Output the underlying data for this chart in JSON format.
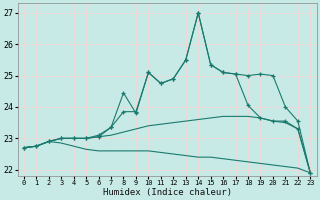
{
  "xlabel": "Humidex (Indice chaleur)",
  "xlim": [
    -0.5,
    23.5
  ],
  "ylim": [
    21.8,
    27.3
  ],
  "xticks": [
    0,
    1,
    2,
    3,
    4,
    5,
    6,
    7,
    8,
    9,
    10,
    11,
    12,
    13,
    14,
    15,
    16,
    17,
    18,
    19,
    20,
    21,
    22,
    23
  ],
  "yticks": [
    22,
    23,
    24,
    25,
    26,
    27
  ],
  "bg_color": "#c8eae6",
  "line_color": "#1a7a6e",
  "grid_color": "#f0d8d8",
  "lines": [
    {
      "x": [
        0,
        1,
        2,
        3,
        4,
        5,
        6,
        7,
        8,
        9,
        10,
        11,
        12,
        13,
        14,
        15,
        16,
        17,
        18,
        19,
        20,
        21,
        22,
        23
      ],
      "y": [
        22.7,
        22.75,
        22.9,
        22.85,
        22.75,
        22.65,
        22.6,
        22.6,
        22.6,
        22.6,
        22.6,
        22.55,
        22.5,
        22.45,
        22.4,
        22.4,
        22.35,
        22.3,
        22.25,
        22.2,
        22.15,
        22.1,
        22.05,
        21.9
      ],
      "marker": false
    },
    {
      "x": [
        0,
        1,
        2,
        3,
        4,
        5,
        6,
        7,
        8,
        9,
        10,
        11,
        12,
        13,
        14,
        15,
        16,
        17,
        18,
        19,
        20,
        21,
        22,
        23
      ],
      "y": [
        22.7,
        22.75,
        22.9,
        23.0,
        23.0,
        23.0,
        23.05,
        23.1,
        23.2,
        23.3,
        23.4,
        23.45,
        23.5,
        23.55,
        23.6,
        23.65,
        23.7,
        23.7,
        23.7,
        23.65,
        23.55,
        23.5,
        23.3,
        21.9
      ],
      "marker": false
    },
    {
      "x": [
        0,
        1,
        2,
        3,
        4,
        5,
        6,
        7,
        8,
        9,
        10,
        11,
        12,
        13,
        14,
        15,
        16,
        17,
        18,
        19,
        20,
        21,
        22,
        23
      ],
      "y": [
        22.7,
        22.75,
        22.9,
        23.0,
        23.0,
        23.0,
        23.05,
        23.35,
        24.45,
        23.8,
        25.1,
        24.75,
        24.9,
        25.5,
        27.0,
        25.35,
        25.1,
        25.05,
        25.0,
        25.05,
        25.0,
        24.0,
        23.55,
        21.9
      ],
      "marker": true
    },
    {
      "x": [
        0,
        1,
        2,
        3,
        4,
        5,
        6,
        7,
        8,
        9,
        10,
        11,
        12,
        13,
        14,
        15,
        16,
        17,
        18,
        19,
        20,
        21,
        22,
        23
      ],
      "y": [
        22.7,
        22.75,
        22.9,
        23.0,
        23.0,
        23.0,
        23.1,
        23.35,
        23.85,
        23.85,
        25.1,
        24.75,
        24.9,
        25.5,
        27.0,
        25.35,
        25.1,
        25.05,
        24.05,
        23.65,
        23.55,
        23.55,
        23.3,
        21.9
      ],
      "marker": true
    }
  ]
}
